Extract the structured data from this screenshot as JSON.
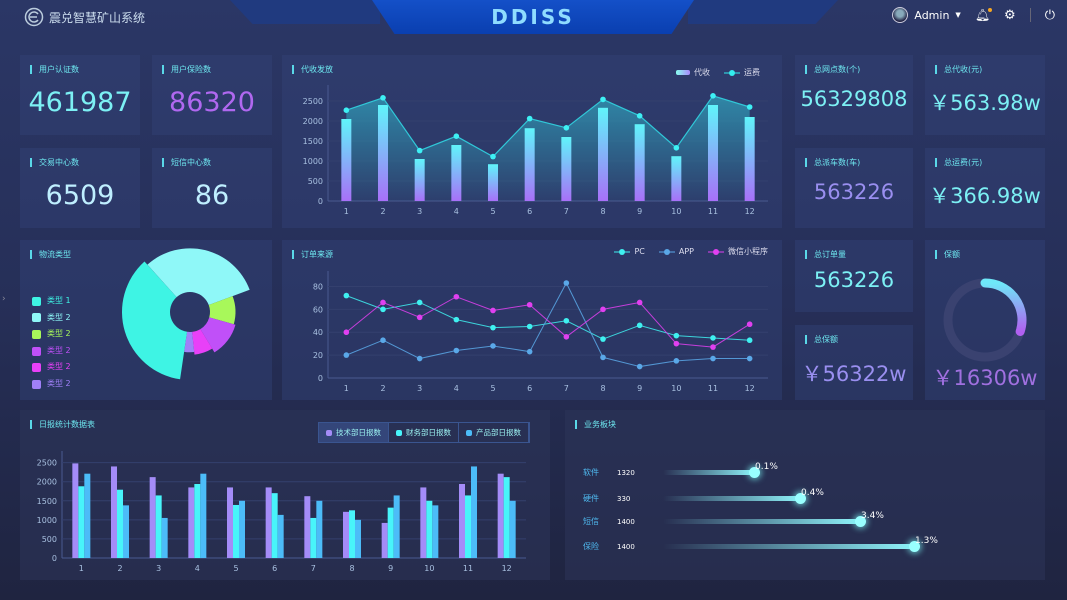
{
  "header": {
    "system_name": "震兑智慧矿山系统",
    "title": "DDISS",
    "user": "Admin",
    "icons": [
      "logo-icon",
      "avatar",
      "chevron-down-icon",
      "bell-icon",
      "gear-icon",
      "power-icon"
    ],
    "notification_color": "#f5a623"
  },
  "kpis": {
    "user_auth": {
      "label": "用户认证数",
      "value": "461987",
      "color": "#7cf0f4"
    },
    "user_insurance": {
      "label": "用户保险数",
      "value": "86320",
      "color": "#b068f0"
    },
    "trade_center": {
      "label": "交易中心数",
      "value": "6509",
      "color": "#bfefff"
    },
    "sms_center": {
      "label": "短信中心数",
      "value": "86",
      "color": "#bfefff"
    },
    "total_outlets": {
      "label": "总网点数(个)",
      "value": "56329808",
      "color": "#7cf0f4"
    },
    "total_collection": {
      "label": "总代收(元)",
      "value": "￥563.98w",
      "color": "#7cf0f4"
    },
    "total_dispatch": {
      "label": "总派车数(车)",
      "value": "563226",
      "color": "#9a8ff0"
    },
    "total_freight": {
      "label": "总运费(元)",
      "value": "￥366.98w",
      "color": "#7cf0f4"
    },
    "total_orders": {
      "label": "总订单量",
      "value": "563226",
      "color": "#7cf0f4"
    },
    "total_insured": {
      "label": "总保额",
      "value": "￥56322w",
      "color": "#9a8ff0"
    },
    "insured": {
      "label": "保额",
      "value": "￥16306w",
      "color": "#a070e0",
      "progress": 0.3
    }
  },
  "chart_data": [
    {
      "id": "collection",
      "type": "bar",
      "title": "代收发放",
      "categories": [
        "1",
        "2",
        "3",
        "4",
        "5",
        "6",
        "7",
        "8",
        "9",
        "10",
        "11",
        "12"
      ],
      "yticks": [
        0,
        500,
        1000,
        1500,
        2000,
        2500
      ],
      "ylim": [
        0,
        2800
      ],
      "grid": true,
      "legend": "top-right",
      "series": [
        {
          "name": "代收",
          "type": "bar",
          "values": [
            2050,
            2400,
            1050,
            1400,
            920,
            1820,
            1600,
            2330,
            1920,
            1120,
            2400,
            2100
          ]
        },
        {
          "name": "运费",
          "type": "line",
          "values": [
            2270,
            2580,
            1260,
            1620,
            1110,
            2060,
            1830,
            2540,
            2130,
            1330,
            2630,
            2350
          ]
        }
      ]
    },
    {
      "id": "order_source",
      "type": "line",
      "title": "订单来源",
      "categories": [
        "1",
        "2",
        "3",
        "4",
        "5",
        "6",
        "7",
        "8",
        "9",
        "10",
        "11",
        "12"
      ],
      "yticks": [
        0,
        20,
        40,
        60,
        80
      ],
      "ylim": [
        0,
        90
      ],
      "grid": true,
      "legend": "top-right",
      "series": [
        {
          "name": "PC",
          "color": "#3ff0f0",
          "values": [
            72,
            60,
            66,
            51,
            44,
            45,
            50,
            34,
            46,
            37,
            35,
            33
          ]
        },
        {
          "name": "APP",
          "color": "#5aa8e8",
          "values": [
            20,
            33,
            17,
            24,
            28,
            23,
            83,
            18,
            10,
            15,
            17,
            17
          ]
        },
        {
          "name": "微信小程序",
          "color": "#e040f0",
          "values": [
            40,
            66,
            53,
            71,
            59,
            64,
            36,
            60,
            66,
            30,
            27,
            47
          ]
        }
      ]
    },
    {
      "id": "daily",
      "type": "bar",
      "title": "日报统计数据表",
      "categories": [
        "1",
        "2",
        "3",
        "4",
        "5",
        "6",
        "7",
        "8",
        "9",
        "10",
        "11",
        "12"
      ],
      "yticks": [
        0,
        500,
        1000,
        1500,
        2000,
        2500
      ],
      "ylim": [
        0,
        2700
      ],
      "grid": true,
      "legend": "top-right",
      "series": [
        {
          "name": "技术部日报数",
          "color": "#a48cf8",
          "values": [
            2480,
            2400,
            2120,
            1850,
            1850,
            1850,
            1620,
            1210,
            920,
            1850,
            1940,
            2210
          ]
        },
        {
          "name": "财务部日报数",
          "color": "#48f4fa",
          "values": [
            1880,
            1790,
            1640,
            1940,
            1390,
            1700,
            1050,
            1250,
            1320,
            1500,
            1640,
            2120
          ]
        },
        {
          "name": "产品部日报数",
          "color": "#4cbcf8",
          "values": [
            2210,
            1380,
            1050,
            2210,
            1500,
            1130,
            1500,
            1000,
            1640,
            1380,
            2400,
            1500
          ]
        }
      ]
    },
    {
      "id": "logistics",
      "type": "pie",
      "title": "物流类型",
      "rose": true,
      "legend": "left",
      "labels": [
        "类型 1",
        "类型 2",
        "类型 2",
        "类型 2",
        "类型 2",
        "类型 2"
      ],
      "colors": [
        "#3ef4e4",
        "#8ff8f8",
        "#a8f85a",
        "#c050f8",
        "#e840f8",
        "#a080f8"
      ],
      "values": [
        36,
        31,
        10,
        12,
        7,
        4
      ]
    }
  ],
  "business": {
    "title": "业务板块",
    "items": [
      {
        "name": "软件",
        "value": "1320",
        "percent": "0.1%",
        "level": 0.4
      },
      {
        "name": "硬件",
        "value": "330",
        "percent": "0.4%",
        "level": 0.52
      },
      {
        "name": "短信",
        "value": "1400",
        "percent": "3.4%",
        "level": 0.68
      },
      {
        "name": "保险",
        "value": "1400",
        "percent": "1.3%",
        "level": 0.82
      }
    ]
  }
}
